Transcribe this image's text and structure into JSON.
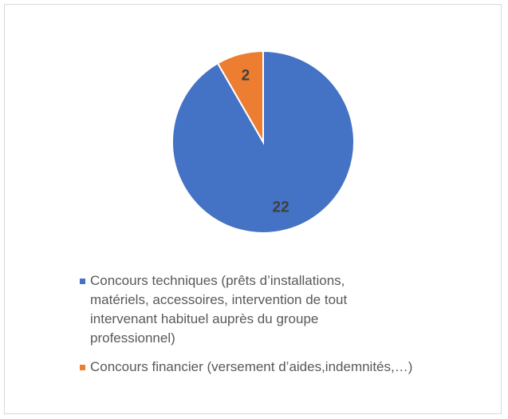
{
  "chart_data": {
    "type": "pie",
    "categories": [
      "Concours techniques (prêts d’installations, matériels, accessoires, intervention de tout intervenant habituel auprès du groupe professionnel)",
      "Concours financier (versement d’aides,indemnités,…)"
    ],
    "values": [
      22,
      2
    ],
    "colors": [
      "#4472c4",
      "#ed7d31"
    ]
  }
}
